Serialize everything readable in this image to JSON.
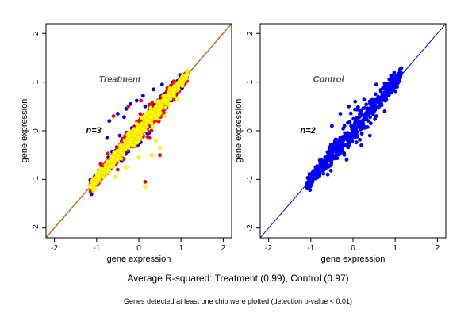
{
  "chart_data": [
    {
      "type": "scatter",
      "title": "Treatment",
      "annotation": "n=3",
      "xlabel": "gene expression",
      "ylabel": "gene expression",
      "xlim": [
        -2.2,
        2.2
      ],
      "ylim": [
        -2.2,
        2.2
      ],
      "xticks": [
        "-2",
        "-1",
        "0",
        "1",
        "2"
      ],
      "yticks": [
        "-2",
        "-1",
        "0",
        "1",
        "2"
      ],
      "reference_line": {
        "slope": 1,
        "intercept": 0,
        "colors": [
          "#ff0000",
          "#b8860b"
        ]
      },
      "series": [
        {
          "color": "#0000ff",
          "cloud": {
            "x_range": [
              -1.15,
              1.15
            ],
            "spread": 0.07
          },
          "outliers": [
            [
              -0.7,
              0.2
            ],
            [
              -0.5,
              0.35
            ],
            [
              -0.3,
              0.45
            ],
            [
              -0.2,
              0.55
            ],
            [
              -0.05,
              0.62
            ],
            [
              0.1,
              0.72
            ],
            [
              0.35,
              0.85
            ],
            [
              -0.45,
              -0.1
            ],
            [
              0.2,
              -0.05
            ],
            [
              -0.75,
              -0.15
            ],
            [
              0.55,
              0.95
            ],
            [
              0.15,
              0.5
            ],
            [
              -0.35,
              0.28
            ]
          ]
        },
        {
          "color": "#ff0000",
          "cloud": {
            "x_range": [
              -1.15,
              1.15
            ],
            "spread": 0.08
          },
          "outliers": [
            [
              0.15,
              -1.05
            ],
            [
              0.5,
              -0.5
            ],
            [
              -0.6,
              0.3
            ],
            [
              -0.25,
              0.5
            ],
            [
              0.05,
              0.62
            ],
            [
              0.3,
              0.0
            ],
            [
              -0.1,
              -0.3
            ],
            [
              0.45,
              0.2
            ],
            [
              0.65,
              0.6
            ],
            [
              -0.5,
              -0.8
            ],
            [
              0.25,
              -0.15
            ]
          ]
        },
        {
          "color": "#ffff00",
          "cloud": {
            "x_range": [
              -1.15,
              1.15
            ],
            "spread": 0.06
          },
          "outliers": [
            [
              0.5,
              -0.35
            ],
            [
              0.72,
              0.55
            ],
            [
              0.4,
              -0.2
            ],
            [
              0.9,
              0.65
            ],
            [
              0.6,
              0.3
            ],
            [
              -0.3,
              -0.75
            ],
            [
              0.0,
              -0.55
            ],
            [
              0.3,
              -0.5
            ],
            [
              -0.55,
              -0.95
            ],
            [
              0.15,
              -1.15
            ]
          ]
        }
      ]
    },
    {
      "type": "scatter",
      "title": "Control",
      "annotation": "n=2",
      "xlabel": "gene expression",
      "ylabel": "gene expression",
      "xlim": [
        -2.2,
        2.2
      ],
      "ylim": [
        -2.2,
        2.2
      ],
      "xticks": [
        "-2",
        "-1",
        "0",
        "1",
        "2"
      ],
      "yticks": [
        "-2",
        "-1",
        "0",
        "1",
        "2"
      ],
      "reference_line": {
        "slope": 1,
        "intercept": 0,
        "colors": [
          "#0000ff"
        ]
      },
      "series": [
        {
          "color": "#0000ff",
          "cloud": {
            "x_range": [
              -1.1,
              1.15
            ],
            "spread": 0.1
          },
          "outliers": [
            [
              -0.3,
              0.35
            ],
            [
              0.05,
              0.6
            ],
            [
              -0.5,
              0.1
            ],
            [
              0.4,
              -0.1
            ],
            [
              0.75,
              0.4
            ],
            [
              -0.6,
              -0.9
            ],
            [
              0.2,
              -0.3
            ],
            [
              0.55,
              0.95
            ],
            [
              -0.1,
              0.5
            ]
          ]
        }
      ]
    }
  ],
  "captions": {
    "main": "Average R-squared: Treatment (0.99), Control (0.97)",
    "sub": "Genes detected at least one chip were plotted (detection p-value < 0.01)"
  }
}
